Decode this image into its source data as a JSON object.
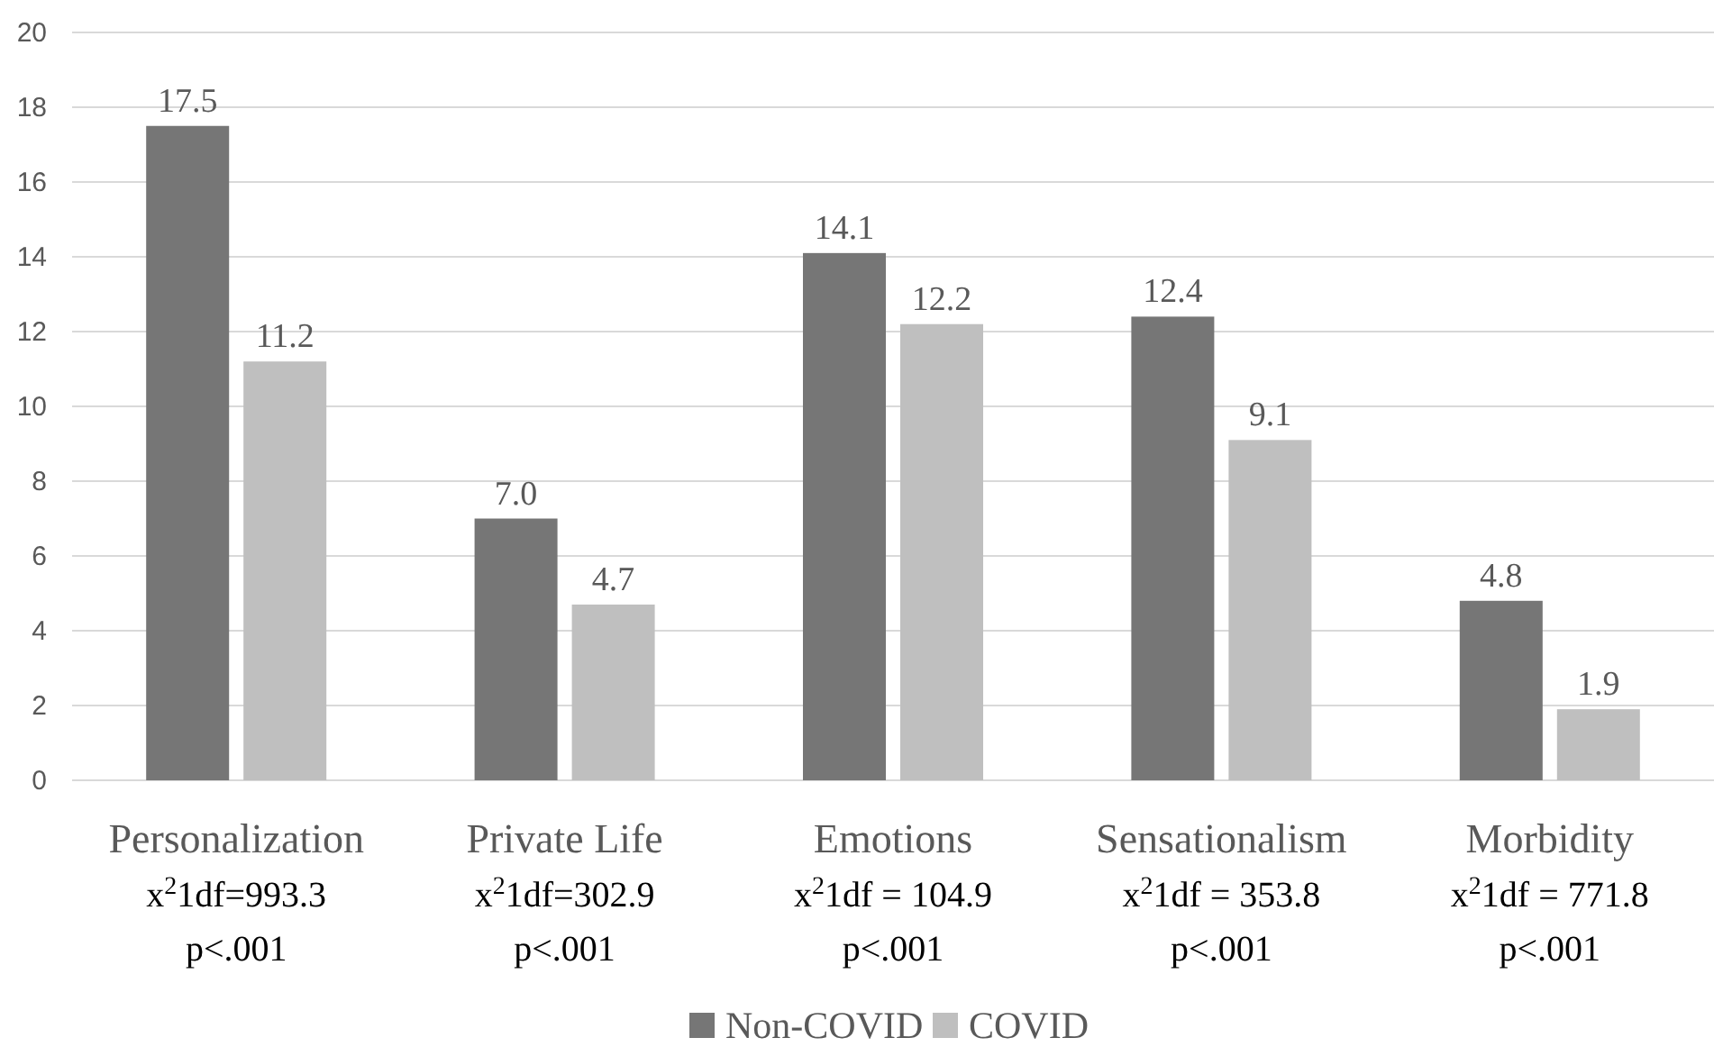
{
  "chart_data": {
    "type": "bar",
    "categories": [
      "Personalization\nx$^{2}$1df=993.3\np<.001",
      "Private Life\nx$^{2}$1df=302.9\np<.001",
      "Emotions\nx$^{2}$1df = 104.9\np<.001",
      "Sensationalism\nx$^{2}$1df = 353.8\np<.001",
      "Morbidity\nx$^{2}$1df = 771.8\np<.001"
    ],
    "series": [
      {
        "name": "Non-COVID",
        "color": "#767676",
        "values": [
          17.5,
          7.0,
          14.1,
          12.4,
          4.8
        ],
        "value_labels": [
          "17.5",
          "7.0",
          "14.1",
          "12.4",
          "4.8"
        ]
      },
      {
        "name": "COVID",
        "color": "#bfbfbf",
        "values": [
          11.2,
          4.7,
          12.2,
          9.1,
          1.9
        ],
        "value_labels": [
          "11.2",
          "4.7",
          "12.2",
          "9.1",
          "1.9"
        ]
      }
    ],
    "ylim": [
      0,
      20
    ],
    "yticks": [
      0,
      2,
      4,
      6,
      8,
      10,
      12,
      14,
      16,
      18,
      20
    ],
    "grid": "y",
    "legend": "bottom"
  }
}
